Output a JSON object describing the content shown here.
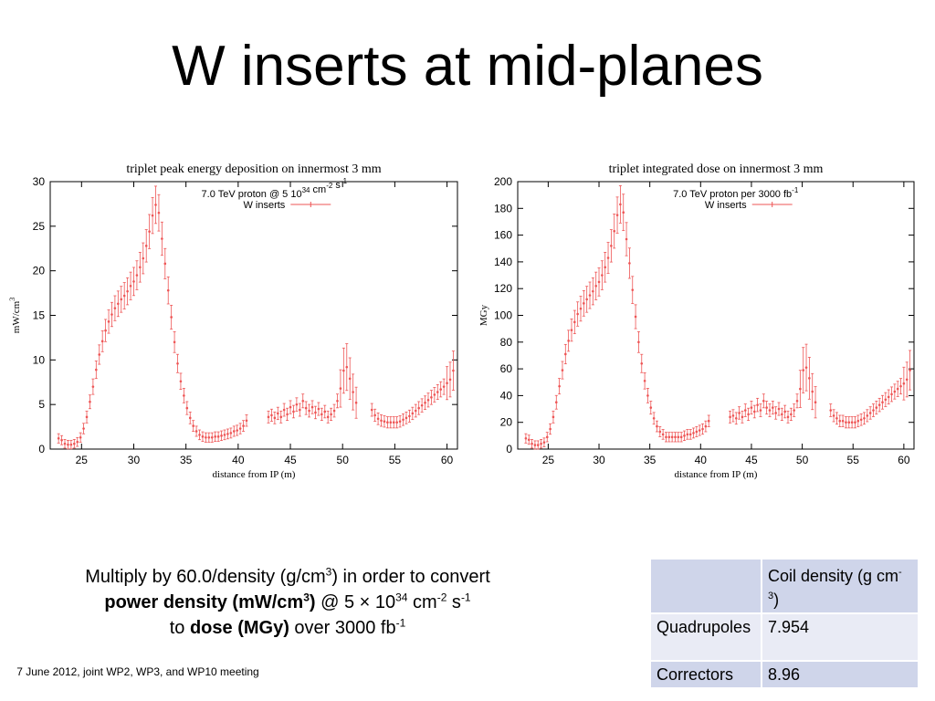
{
  "slide": {
    "title": "W inserts at mid-planes",
    "footer": "7 June 2012, joint WP2, WP3, and WP10 meeting"
  },
  "note": {
    "line1_pre": "Multiply by 60.0/density (g/cm",
    "line1_sup": "3",
    "line1_post": ") in order to convert",
    "line2_bold": "power density (mW/cm",
    "line2_bold_sup": "3",
    "line2_bold_post": ")",
    "line2_mid": " @ 5 × 10",
    "line2_sup1": "34",
    "line2_unit": " cm",
    "line2_sup2": "-2",
    "line2_s": " s",
    "line2_sup3": "-1",
    "line3_pre": "to ",
    "line3_bold": "dose (MGy)",
    "line3_mid": " over 3000 fb",
    "line3_sup": "-1"
  },
  "density_table": {
    "header": "Coil density (g cm",
    "header_sup": "-3",
    "header_close": ")",
    "rows": [
      {
        "name": "Quadrupoles",
        "value": "7.954"
      },
      {
        "name": "Correctors",
        "value": "8.96"
      }
    ]
  },
  "chart_data": [
    {
      "type": "scatter",
      "title": "triplet peak energy deposition on innermost 3 mm",
      "legend_header": "7.0 TeV proton @ 5 10",
      "legend_header_sup1": "34",
      "legend_header_mid": " cm",
      "legend_header_sup2": "-2",
      "legend_header_end": " s",
      "legend_header_sup3": "-1",
      "series_name": "W inserts",
      "xlabel": "distance from IP (m)",
      "ylabel": "mW/cm",
      "ylabel_sup": "3",
      "xlim": [
        22,
        61
      ],
      "ylim": [
        0,
        30
      ],
      "xticks": [
        25,
        30,
        35,
        40,
        45,
        50,
        55,
        60
      ],
      "yticks": [
        0,
        5,
        10,
        15,
        20,
        25,
        30
      ],
      "color": "#ee5555",
      "x": [
        22.8,
        23.1,
        23.4,
        23.7,
        24.0,
        24.3,
        24.6,
        24.9,
        25.2,
        25.5,
        25.8,
        26.1,
        26.4,
        26.7,
        27.0,
        27.3,
        27.6,
        27.9,
        28.2,
        28.5,
        28.8,
        29.1,
        29.4,
        29.7,
        30.0,
        30.3,
        30.6,
        30.9,
        31.2,
        31.5,
        31.8,
        32.1,
        32.4,
        32.7,
        33.0,
        33.3,
        33.6,
        33.9,
        34.2,
        34.5,
        34.8,
        35.1,
        35.4,
        35.7,
        36.0,
        36.3,
        36.6,
        36.9,
        37.2,
        37.5,
        37.8,
        38.1,
        38.4,
        38.7,
        39.0,
        39.3,
        39.6,
        39.9,
        40.2,
        40.5,
        40.8,
        42.9,
        43.2,
        43.5,
        43.8,
        44.1,
        44.4,
        44.7,
        45.0,
        45.3,
        45.6,
        45.9,
        46.2,
        46.5,
        46.8,
        47.1,
        47.4,
        47.7,
        48.0,
        48.3,
        48.6,
        48.9,
        49.2,
        49.5,
        49.8,
        50.1,
        50.4,
        50.7,
        51.0,
        51.3,
        52.8,
        53.1,
        53.4,
        53.7,
        54.0,
        54.3,
        54.6,
        54.9,
        55.2,
        55.5,
        55.8,
        56.1,
        56.4,
        56.7,
        57.0,
        57.3,
        57.6,
        57.9,
        58.2,
        58.5,
        58.8,
        59.1,
        59.4,
        59.7,
        60.0,
        60.3,
        60.6
      ],
      "y": [
        1.2,
        1.0,
        0.6,
        0.5,
        0.5,
        0.6,
        0.8,
        1.3,
        2.3,
        3.6,
        5.3,
        7.0,
        8.9,
        10.6,
        12.1,
        13.3,
        14.3,
        15.1,
        15.8,
        16.3,
        16.8,
        17.2,
        17.7,
        18.3,
        18.8,
        19.5,
        20.4,
        21.4,
        22.8,
        24.4,
        26.2,
        27.4,
        26.5,
        23.6,
        20.8,
        17.8,
        14.8,
        12.0,
        9.6,
        7.6,
        6.0,
        4.6,
        3.5,
        2.6,
        2.0,
        1.6,
        1.4,
        1.3,
        1.3,
        1.3,
        1.4,
        1.4,
        1.5,
        1.6,
        1.7,
        1.8,
        2.0,
        2.1,
        2.3,
        2.6,
        3.2,
        3.6,
        3.8,
        3.5,
        4.0,
        3.6,
        4.4,
        3.9,
        4.7,
        4.2,
        5.0,
        4.4,
        5.4,
        4.6,
        4.3,
        4.7,
        4.1,
        4.5,
        3.9,
        4.2,
        3.6,
        3.9,
        4.3,
        5.4,
        6.8,
        8.8,
        9.2,
        7.9,
        6.4,
        5.2,
        4.4,
        3.8,
        3.4,
        3.2,
        3.1,
        3.0,
        3.0,
        3.0,
        3.0,
        3.1,
        3.3,
        3.5,
        3.7,
        4.0,
        4.3,
        4.6,
        4.9,
        5.2,
        5.5,
        5.8,
        6.1,
        6.4,
        6.7,
        7.0,
        7.4,
        7.8,
        8.8
      ]
    },
    {
      "type": "scatter",
      "title": "triplet integrated dose on innermost 3 mm",
      "legend_header": "7.0 TeV proton per 3000 fb",
      "legend_header_sup1": "-1",
      "legend_header_mid": "",
      "legend_header_sup2": "",
      "legend_header_end": "",
      "legend_header_sup3": "",
      "series_name": "W inserts",
      "xlabel": "distance from IP (m)",
      "ylabel": "MGy",
      "ylabel_sup": "",
      "xlim": [
        22,
        61
      ],
      "ylim": [
        0,
        200
      ],
      "xticks": [
        25,
        30,
        35,
        40,
        45,
        50,
        55,
        60
      ],
      "yticks": [
        0,
        20,
        40,
        60,
        80,
        100,
        120,
        140,
        160,
        180,
        200
      ],
      "color": "#ee5555",
      "x": [
        22.8,
        23.1,
        23.4,
        23.7,
        24.0,
        24.3,
        24.6,
        24.9,
        25.2,
        25.5,
        25.8,
        26.1,
        26.4,
        26.7,
        27.0,
        27.3,
        27.6,
        27.9,
        28.2,
        28.5,
        28.8,
        29.1,
        29.4,
        29.7,
        30.0,
        30.3,
        30.6,
        30.9,
        31.2,
        31.5,
        31.8,
        32.1,
        32.4,
        32.7,
        33.0,
        33.3,
        33.6,
        33.9,
        34.2,
        34.5,
        34.8,
        35.1,
        35.4,
        35.7,
        36.0,
        36.3,
        36.6,
        36.9,
        37.2,
        37.5,
        37.8,
        38.1,
        38.4,
        38.7,
        39.0,
        39.3,
        39.6,
        39.9,
        40.2,
        40.5,
        40.8,
        42.9,
        43.2,
        43.5,
        43.8,
        44.1,
        44.4,
        44.7,
        45.0,
        45.3,
        45.6,
        45.9,
        46.2,
        46.5,
        46.8,
        47.1,
        47.4,
        47.7,
        48.0,
        48.3,
        48.6,
        48.9,
        49.2,
        49.5,
        49.8,
        50.1,
        50.4,
        50.7,
        51.0,
        51.3,
        52.8,
        53.1,
        53.4,
        53.7,
        54.0,
        54.3,
        54.6,
        54.9,
        55.2,
        55.5,
        55.8,
        56.1,
        56.4,
        56.7,
        57.0,
        57.3,
        57.6,
        57.9,
        58.2,
        58.5,
        58.8,
        59.1,
        59.4,
        59.7,
        60.0,
        60.3,
        60.6
      ],
      "y": [
        8,
        7,
        4,
        3,
        3,
        4,
        5,
        9,
        15,
        24,
        35,
        47,
        59,
        71,
        81,
        89,
        95,
        101,
        105,
        109,
        112,
        115,
        118,
        122,
        125,
        130,
        136,
        143,
        152,
        163,
        175,
        183,
        177,
        157,
        139,
        119,
        99,
        80,
        64,
        51,
        40,
        31,
        23,
        17,
        13,
        11,
        9,
        9,
        9,
        9,
        9,
        9,
        10,
        11,
        11,
        12,
        13,
        14,
        15,
        17,
        21,
        24,
        25,
        23,
        27,
        24,
        29,
        26,
        31,
        28,
        33,
        29,
        36,
        31,
        29,
        31,
        27,
        30,
        26,
        28,
        24,
        26,
        29,
        36,
        45,
        59,
        61,
        53,
        43,
        35,
        29,
        25,
        23,
        21,
        21,
        20,
        20,
        20,
        20,
        21,
        22,
        23,
        25,
        27,
        29,
        31,
        33,
        35,
        37,
        39,
        41,
        43,
        45,
        47,
        49,
        52,
        59
      ]
    }
  ]
}
